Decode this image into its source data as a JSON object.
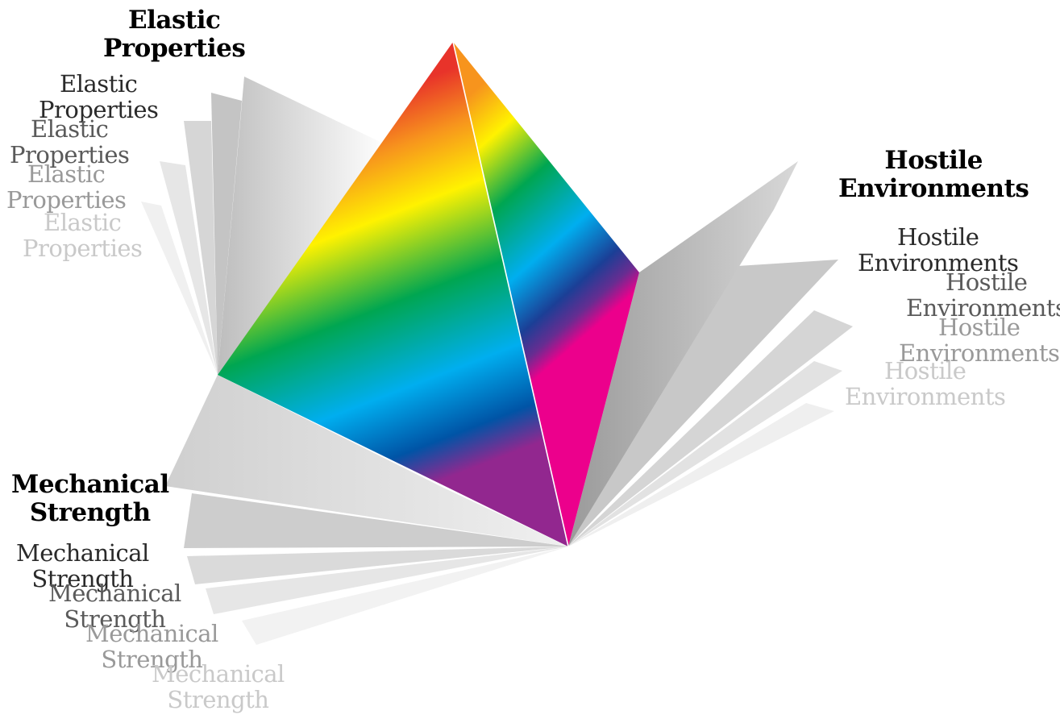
{
  "labels": {
    "elastic": [
      {
        "line1": "Elastic",
        "line2": "Properties"
      },
      {
        "line1": "Elastic",
        "line2": "Properties"
      },
      {
        "line1": "Elastic",
        "line2": "Properties"
      },
      {
        "line1": "Elastic",
        "line2": "Properties"
      },
      {
        "line1": "Elastic",
        "line2": "Properties"
      }
    ],
    "hostile": [
      {
        "line1": "Hostile",
        "line2": "Environments"
      },
      {
        "line1": "Hostile",
        "line2": "Environments"
      },
      {
        "line1": "Hostile",
        "line2": "Environments"
      },
      {
        "line1": "Hostile",
        "line2": "Environments"
      },
      {
        "line1": "Hostile",
        "line2": "Environments"
      }
    ],
    "mechanical": [
      {
        "line1": "Mechanical",
        "line2": "Strength"
      },
      {
        "line1": "Mechanical",
        "line2": "Strength"
      },
      {
        "line1": "Mechanical",
        "line2": "Strength"
      },
      {
        "line1": "Mechanical",
        "line2": "Strength"
      },
      {
        "line1": "Mechanical",
        "line2": "Strength"
      }
    ]
  },
  "colors": {
    "spectrum": [
      "#e8332a",
      "#f7941d",
      "#fff200",
      "#00a651",
      "#00aeef",
      "#2e3192",
      "#ec008c"
    ],
    "fan": [
      "#bdbdbd",
      "#d3d3d3",
      "#e2e2e2",
      "#ececec",
      "#f4f4f4"
    ]
  }
}
